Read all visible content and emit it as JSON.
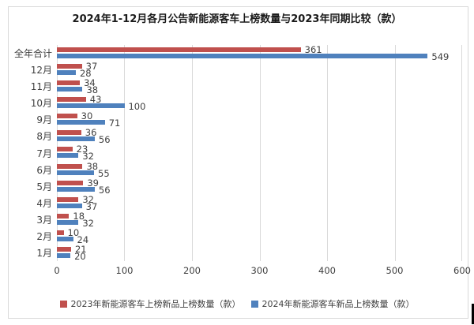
{
  "title": "2024年1-12月各月公告新能源客车上榜数量与2023年同期比较（款）",
  "chart_data": {
    "type": "bar",
    "orientation": "horizontal",
    "title": "2024年1-12月各月公告新能源客车上榜数量与2023年同期比较（款）",
    "categories": [
      "全年合计",
      "12月",
      "11月",
      "10月",
      "9月",
      "8月",
      "7月",
      "6月",
      "5月",
      "4月",
      "3月",
      "2月",
      "1月"
    ],
    "series": [
      {
        "name": "2023年新能源客车上榜新品上榜数量（款）",
        "color": "#C0504D",
        "values": [
          361,
          37,
          34,
          43,
          30,
          36,
          23,
          38,
          39,
          32,
          18,
          10,
          21
        ]
      },
      {
        "name": "2024年新能源客车新品上榜数量（款）",
        "color": "#4F81BD",
        "values": [
          549,
          28,
          38,
          100,
          71,
          56,
          32,
          55,
          56,
          37,
          32,
          24,
          20
        ]
      }
    ],
    "xlim": [
      0,
      600
    ],
    "x_ticks": [
      0,
      100,
      200,
      300,
      400,
      500,
      600
    ],
    "grid": true,
    "gridline_color": "#D9D9D9",
    "label_color": "#3F3F3F",
    "legend_position": "bottom"
  }
}
